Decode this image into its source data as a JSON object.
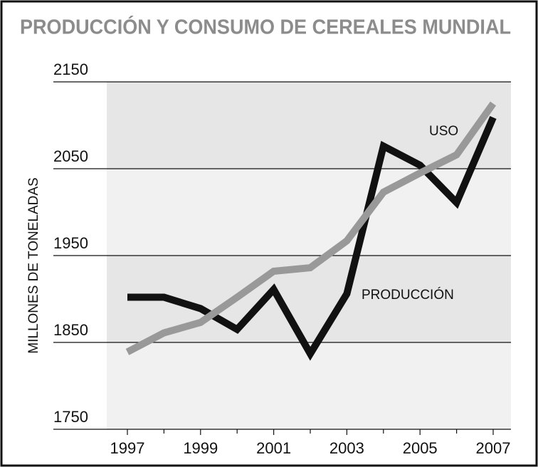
{
  "chart_data": {
    "type": "line",
    "title": "PRODUCCIÓN Y CONSUMO DE CEREALES MUNDIAL",
    "y_label": "MILLONES DE TONELADAS",
    "x": [
      1997,
      1998,
      1999,
      2000,
      2001,
      2002,
      2003,
      2004,
      2005,
      2006,
      2007
    ],
    "series": [
      {
        "name": "PRODUCCIÓN",
        "color": "#111111",
        "values": [
          1902,
          1902,
          1889,
          1865,
          1911,
          1837,
          1906,
          2076,
          2054,
          2011,
          2109
        ]
      },
      {
        "name": "USO",
        "color": "#999999",
        "values": [
          1839,
          1861,
          1873,
          1902,
          1932,
          1936,
          1967,
          2023,
          2045,
          2066,
          2125
        ]
      }
    ],
    "xlim": [
      1997,
      2007
    ],
    "xticks": [
      1997,
      1999,
      2001,
      2003,
      2005,
      2007
    ],
    "ylim": [
      1750,
      2150
    ],
    "yticks": [
      1750,
      1850,
      1950,
      2050,
      2150
    ],
    "grid": true
  }
}
